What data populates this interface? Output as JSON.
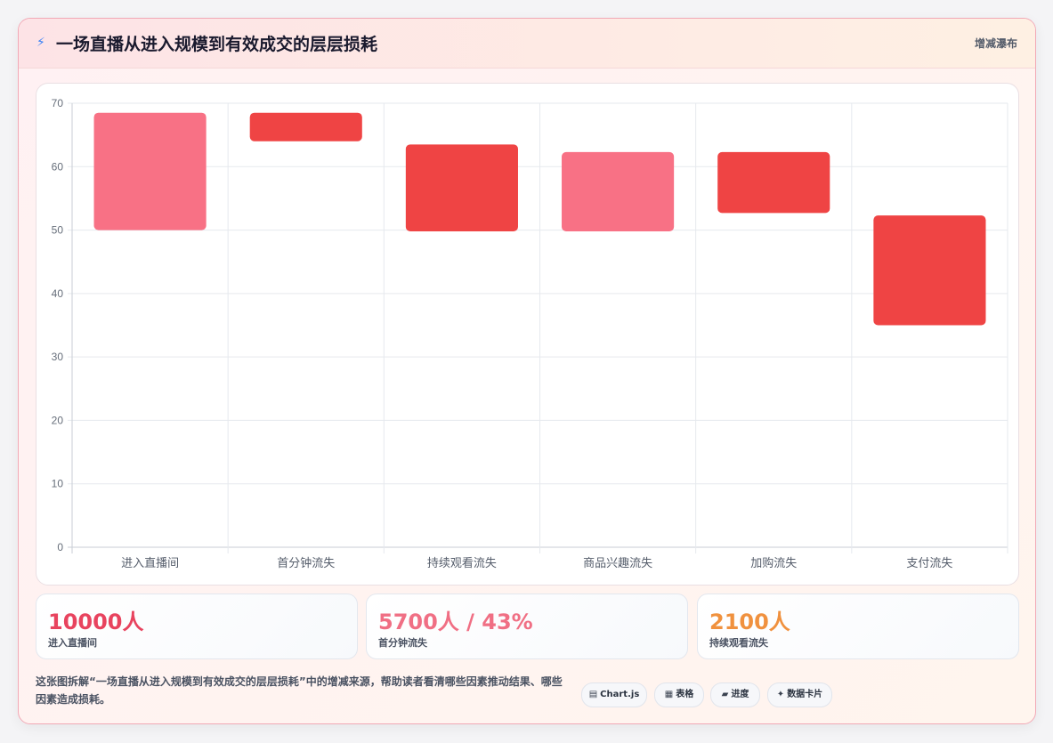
{
  "header": {
    "icon": "lightning-icon",
    "title": "一场直播从进入规模到有效成交的层层损耗",
    "right_label": "增减瀑布"
  },
  "chart_data": {
    "type": "bar",
    "subtype": "floating-waterfall",
    "categories": [
      "进入直播间",
      "首分钟流失",
      "持续观看流失",
      "商品兴趣流失",
      "加购流失",
      "支付流失"
    ],
    "ranges": [
      [
        50,
        68.5
      ],
      [
        64,
        68.5
      ],
      [
        49.8,
        63.5
      ],
      [
        49.8,
        62.3
      ],
      [
        52.7,
        62.3
      ],
      [
        35,
        52.3
      ]
    ],
    "colors": [
      "#f87185",
      "#ef4444",
      "#ef4444",
      "#f87185",
      "#ef4444",
      "#ef4444"
    ],
    "ylim": [
      0,
      70
    ],
    "yticks": [
      0,
      10,
      20,
      30,
      40,
      50,
      60,
      70
    ],
    "grid": true,
    "legend": "none"
  },
  "stats": [
    {
      "value": "10000人",
      "label": "进入直播间",
      "color": "#e8435e"
    },
    {
      "value": "5700人 / 43%",
      "label": "首分钟流失",
      "color": "#f06f84"
    },
    {
      "value": "2100人",
      "label": "持续观看流失",
      "color": "#f0913e"
    }
  ],
  "footer": {
    "description": "这张图拆解“一场直播从进入规模到有效成交的层层损耗”中的增减来源，帮助读者看清哪些因素推动结果、哪些因素造成损耗。",
    "chips": [
      {
        "icon": "chart-icon",
        "glyph": "▤",
        "label": "Chart.js"
      },
      {
        "icon": "table-icon",
        "glyph": "▦",
        "label": "表格"
      },
      {
        "icon": "progress-icon",
        "glyph": "▰",
        "label": "进度"
      },
      {
        "icon": "sparkle-icon",
        "glyph": "✦",
        "label": "数据卡片"
      }
    ]
  }
}
